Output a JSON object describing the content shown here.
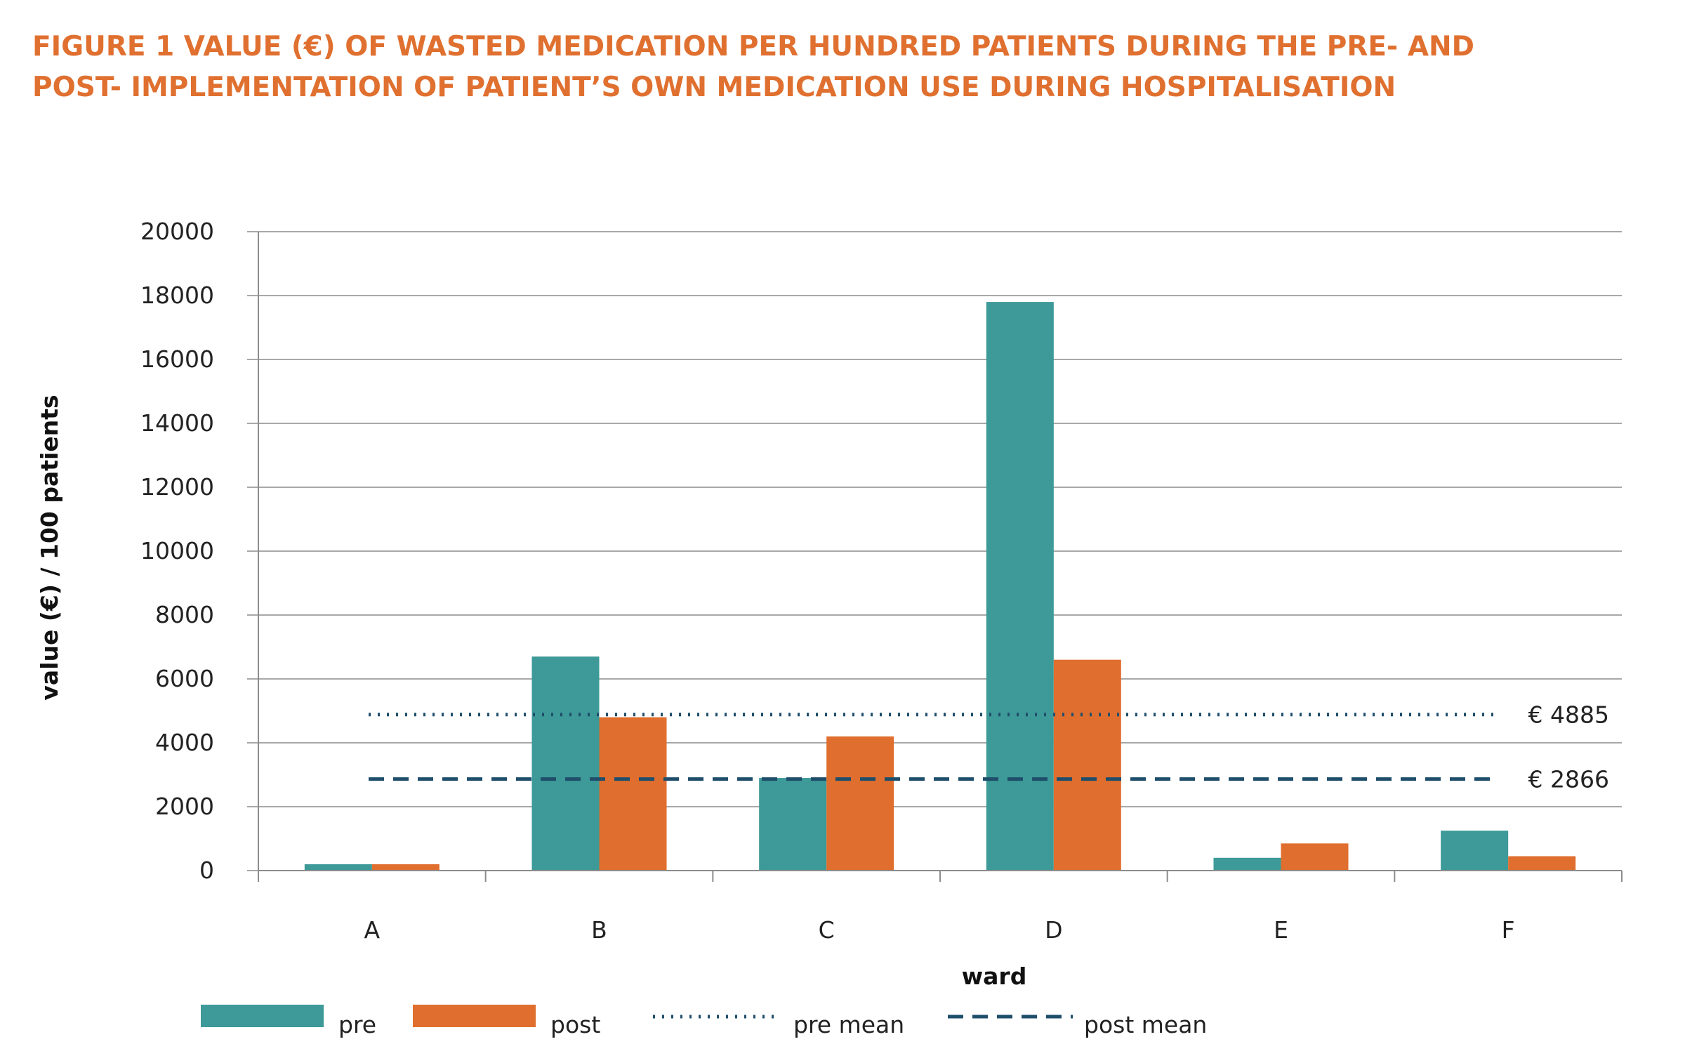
{
  "figure": {
    "title_line1": "FIGURE 1 VALUE (€) OF WASTED MEDICATION PER HUNDRED PATIENTS DURING THE PRE- AND",
    "title_line2": "POST- IMPLEMENTATION OF PATIENT’S OWN MEDICATION USE DURING HOSPITALISATION"
  },
  "chart_data": {
    "type": "bar",
    "title": "FIGURE 1 VALUE (€) OF WASTED MEDICATION PER HUNDRED PATIENTS DURING THE PRE- AND POST- IMPLEMENTATION OF PATIENT’S OWN MEDICATION USE DURING HOSPITALISATION",
    "xlabel": "ward",
    "ylabel": "value (€) / 100 patients",
    "categories": [
      "A",
      "B",
      "C",
      "D",
      "E",
      "F"
    ],
    "series": [
      {
        "name": "pre",
        "color": "#3d9a98",
        "values": [
          200,
          6700,
          2900,
          17800,
          400,
          1250
        ]
      },
      {
        "name": "post",
        "color": "#e06e2e",
        "values": [
          200,
          4800,
          4200,
          6600,
          850,
          450
        ]
      }
    ],
    "reference_lines": [
      {
        "name": "pre mean",
        "value": 4885,
        "label": "€ 4885",
        "style": "dotted",
        "color": "#1f4e6b"
      },
      {
        "name": "post mean",
        "value": 2866,
        "label": "€ 2866",
        "style": "dashed",
        "color": "#1f4e6b"
      }
    ],
    "ylim": [
      0,
      20000
    ],
    "yticks": [
      "0",
      "2000",
      "4000",
      "6000",
      "8000",
      "10000",
      "12000",
      "14000",
      "16000",
      "18000",
      "20000"
    ],
    "grid": true,
    "legend_position": "bottom"
  }
}
